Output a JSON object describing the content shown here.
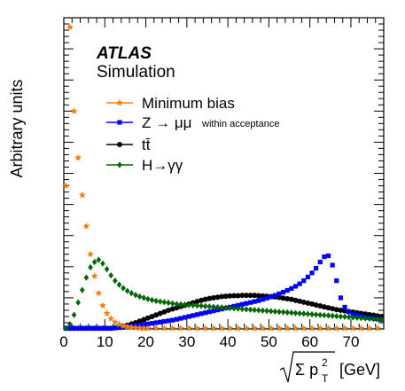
{
  "chart_data": {
    "type": "scatter",
    "xlabel": "√Σ p²T [GeV]",
    "xlabel_unit": "[GeV]",
    "ylabel": "Arbitrary units",
    "xlim": [
      0,
      78
    ],
    "ylim": [
      0,
      1.0
    ],
    "x_ticks": [
      "0",
      "10",
      "20",
      "30",
      "40",
      "50",
      "60",
      "70"
    ],
    "grid": false,
    "legend_position": "top-left",
    "experiment_label": "ATLAS",
    "experiment_sublabel": "Simulation",
    "bin_width": 1,
    "series": [
      {
        "name": "Minimum bias",
        "marker": "star",
        "color": "#f07f14",
        "x": [
          0.5,
          1.5,
          2.5,
          3.5,
          4.5,
          5.5,
          6.5,
          7.5,
          8.5,
          9.5,
          10.5,
          11.5,
          12.5,
          13.5,
          14.5,
          15.5,
          16.5,
          17.5,
          18.5,
          19.5,
          20.5,
          22.5,
          24.5,
          26.5,
          28.5,
          30.5,
          32.5,
          34.5,
          36.5,
          38.5,
          40.5,
          42.5,
          44.5,
          46.5,
          48.5,
          50.5,
          52.5,
          54.5,
          56.5,
          58.5,
          60.5,
          62.5,
          64.5,
          66.5,
          68.5,
          70.5,
          72.5,
          74.5,
          76.5
        ],
        "y": [
          0.46,
          0.97,
          0.7,
          0.55,
          0.43,
          0.33,
          0.24,
          0.17,
          0.115,
          0.075,
          0.05,
          0.033,
          0.022,
          0.015,
          0.01,
          0.007,
          0.005,
          0.004,
          0.003,
          0.002,
          0.002,
          0.001,
          0.001,
          0.001,
          0.001,
          0.001,
          0.001,
          0.001,
          0.001,
          0.001,
          0.001,
          0.001,
          0.001,
          0.001,
          0.001,
          0.001,
          0.001,
          0.001,
          0.001,
          0.001,
          0.001,
          0.001,
          0.001,
          0.001,
          0.001,
          0.001,
          0.001,
          0.001,
          0.001
        ]
      },
      {
        "name": "Z → μμ",
        "note": "within acceptance",
        "marker": "square",
        "color": "#0000ff",
        "x": [
          0.5,
          1.5,
          2.5,
          3.5,
          4.5,
          5.5,
          6.5,
          7.5,
          8.5,
          9.5,
          10.5,
          11.5,
          12.5,
          13.5,
          14.5,
          15.5,
          16.5,
          17.5,
          18.5,
          19.5,
          20.5,
          21.5,
          22.5,
          23.5,
          24.5,
          25.5,
          26.5,
          27.5,
          28.5,
          29.5,
          30.5,
          31.5,
          32.5,
          33.5,
          34.5,
          35.5,
          36.5,
          37.5,
          38.5,
          39.5,
          40.5,
          41.5,
          42.5,
          43.5,
          44.5,
          45.5,
          46.5,
          47.5,
          48.5,
          49.5,
          50.5,
          51.5,
          52.5,
          53.5,
          54.5,
          55.5,
          56.5,
          57.5,
          58.5,
          59.5,
          60.5,
          61.5,
          62.5,
          63.5,
          64.5,
          65.5,
          66.5,
          67.5,
          68.5,
          69.5,
          70.5,
          71.5,
          72.5,
          73.5,
          74.5,
          75.5,
          76.5,
          77.5
        ],
        "y": [
          0,
          0,
          0,
          0,
          0,
          0,
          0,
          0,
          0,
          0,
          0.001,
          0.002,
          0.003,
          0.004,
          0.005,
          0.006,
          0.008,
          0.01,
          0.012,
          0.014,
          0.016,
          0.018,
          0.02,
          0.022,
          0.024,
          0.026,
          0.028,
          0.031,
          0.034,
          0.037,
          0.04,
          0.043,
          0.046,
          0.049,
          0.052,
          0.055,
          0.058,
          0.061,
          0.064,
          0.067,
          0.07,
          0.073,
          0.076,
          0.079,
          0.082,
          0.085,
          0.088,
          0.091,
          0.095,
          0.099,
          0.103,
          0.108,
          0.113,
          0.118,
          0.124,
          0.13,
          0.137,
          0.145,
          0.155,
          0.167,
          0.18,
          0.195,
          0.215,
          0.232,
          0.235,
          0.205,
          0.155,
          0.1,
          0.07,
          0.055,
          0.048,
          0.044,
          0.041,
          0.038,
          0.036,
          0.034,
          0.032,
          0.03
        ]
      },
      {
        "name": "tt̄",
        "marker": "circle",
        "color": "#000000",
        "x": [
          0.5,
          1.5,
          2.5,
          3.5,
          4.5,
          5.5,
          6.5,
          7.5,
          8.5,
          9.5,
          10.5,
          11.5,
          12.5,
          13.5,
          14.5,
          15.5,
          16.5,
          17.5,
          18.5,
          19.5,
          20.5,
          21.5,
          22.5,
          23.5,
          24.5,
          25.5,
          26.5,
          27.5,
          28.5,
          29.5,
          30.5,
          31.5,
          32.5,
          33.5,
          34.5,
          35.5,
          36.5,
          37.5,
          38.5,
          39.5,
          40.5,
          41.5,
          42.5,
          43.5,
          44.5,
          45.5,
          46.5,
          47.5,
          48.5,
          49.5,
          50.5,
          51.5,
          52.5,
          53.5,
          54.5,
          55.5,
          56.5,
          57.5,
          58.5,
          59.5,
          60.5,
          61.5,
          62.5,
          63.5,
          64.5,
          65.5,
          66.5,
          67.5,
          68.5,
          69.5,
          70.5,
          71.5,
          72.5,
          73.5,
          74.5,
          75.5,
          76.5,
          77.5
        ],
        "y": [
          0,
          0,
          0,
          0,
          0,
          0,
          0,
          0,
          0,
          0,
          0.001,
          0.002,
          0.004,
          0.006,
          0.009,
          0.012,
          0.016,
          0.02,
          0.025,
          0.03,
          0.035,
          0.04,
          0.045,
          0.05,
          0.055,
          0.06,
          0.064,
          0.068,
          0.072,
          0.076,
          0.08,
          0.084,
          0.088,
          0.092,
          0.095,
          0.098,
          0.1,
          0.102,
          0.104,
          0.105,
          0.106,
          0.107,
          0.107,
          0.108,
          0.108,
          0.108,
          0.108,
          0.107,
          0.106,
          0.105,
          0.104,
          0.103,
          0.101,
          0.099,
          0.097,
          0.095,
          0.092,
          0.089,
          0.086,
          0.083,
          0.08,
          0.077,
          0.074,
          0.071,
          0.068,
          0.065,
          0.062,
          0.06,
          0.058,
          0.056,
          0.054,
          0.052,
          0.05,
          0.048,
          0.046,
          0.044,
          0.042,
          0.04
        ]
      },
      {
        "name": "H→γγ",
        "marker": "diamond",
        "color": "#006600",
        "x": [
          0.5,
          1.5,
          2.5,
          3.5,
          4.5,
          5.5,
          6.5,
          7.5,
          8.5,
          9.5,
          10.5,
          11.5,
          12.5,
          13.5,
          14.5,
          15.5,
          16.5,
          17.5,
          18.5,
          19.5,
          20.5,
          21.5,
          22.5,
          23.5,
          24.5,
          25.5,
          26.5,
          27.5,
          28.5,
          29.5,
          30.5,
          31.5,
          32.5,
          33.5,
          34.5,
          35.5,
          36.5,
          37.5,
          38.5,
          39.5,
          40.5,
          41.5,
          42.5,
          43.5,
          44.5,
          45.5,
          46.5,
          47.5,
          48.5,
          49.5,
          50.5,
          51.5,
          52.5,
          53.5,
          54.5,
          55.5,
          56.5,
          57.5,
          58.5,
          59.5,
          60.5,
          61.5,
          62.5,
          63.5,
          64.5,
          65.5,
          66.5,
          67.5,
          68.5,
          69.5,
          70.5,
          71.5,
          72.5,
          73.5,
          74.5,
          75.5,
          76.5,
          77.5
        ],
        "y": [
          0,
          0.015,
          0.045,
          0.085,
          0.125,
          0.165,
          0.198,
          0.215,
          0.222,
          0.21,
          0.192,
          0.172,
          0.155,
          0.142,
          0.131,
          0.122,
          0.115,
          0.109,
          0.104,
          0.1,
          0.096,
          0.093,
          0.09,
          0.088,
          0.086,
          0.084,
          0.082,
          0.08,
          0.079,
          0.078,
          0.077,
          0.076,
          0.075,
          0.074,
          0.073,
          0.072,
          0.071,
          0.07,
          0.069,
          0.068,
          0.067,
          0.066,
          0.065,
          0.064,
          0.063,
          0.062,
          0.061,
          0.06,
          0.059,
          0.058,
          0.057,
          0.056,
          0.055,
          0.054,
          0.053,
          0.052,
          0.051,
          0.05,
          0.049,
          0.048,
          0.047,
          0.046,
          0.045,
          0.044,
          0.043,
          0.042,
          0.041,
          0.04,
          0.039,
          0.038,
          0.037,
          0.036,
          0.035,
          0.034,
          0.033,
          0.032,
          0.031,
          0.03
        ]
      }
    ]
  }
}
